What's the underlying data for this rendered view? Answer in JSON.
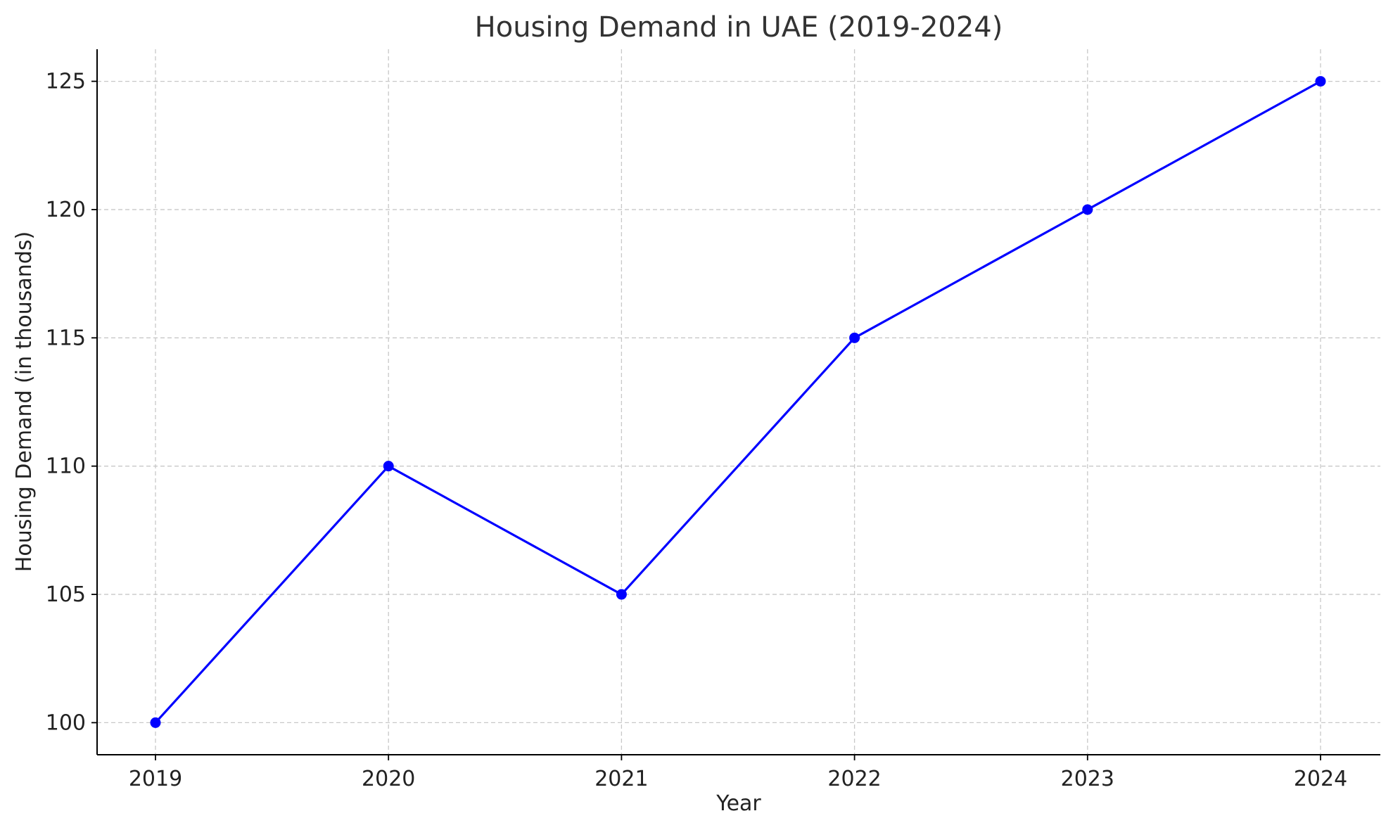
{
  "chart_data": {
    "type": "line",
    "title": "Housing Demand in UAE (2019-2024)",
    "xlabel": "Year",
    "ylabel": "Housing Demand (in thousands)",
    "x": [
      "2019",
      "2020",
      "2021",
      "2022",
      "2023",
      "2024"
    ],
    "series": [
      {
        "values": [
          100,
          110,
          105,
          115,
          120,
          125
        ],
        "color": "#0000ff",
        "marker": "circle"
      }
    ],
    "yticks": [
      100,
      105,
      110,
      115,
      120,
      125
    ],
    "ylim": [
      98.75,
      126.25
    ],
    "grid": true,
    "spines": "left-bottom"
  }
}
